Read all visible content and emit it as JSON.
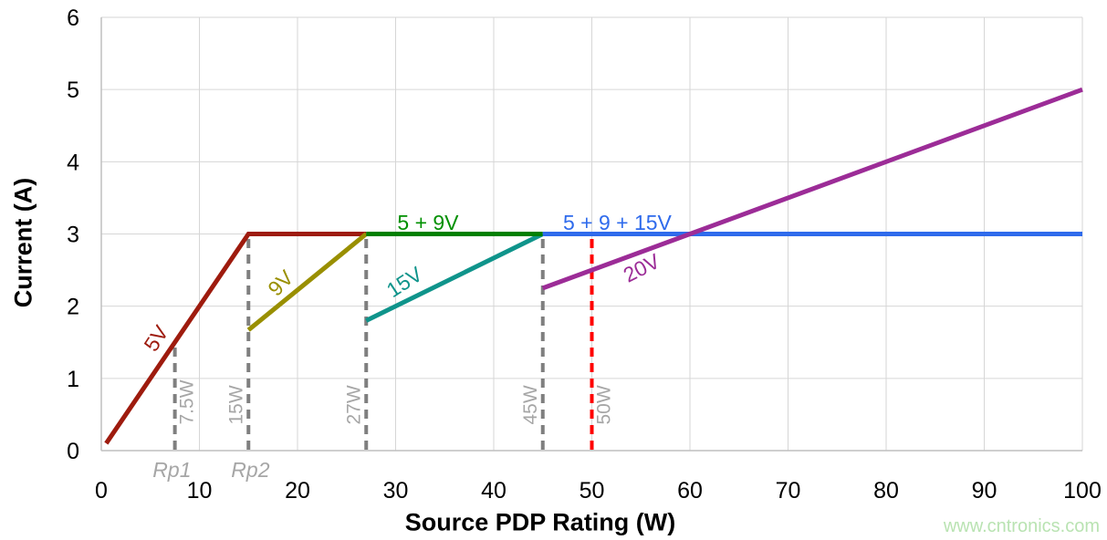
{
  "chart_data": {
    "type": "line",
    "title": "",
    "xlabel": "Source PDP Rating (W)",
    "ylabel": "Current (A)",
    "xlim": [
      0,
      100
    ],
    "ylim": [
      0,
      6
    ],
    "xticks": [
      0,
      10,
      20,
      30,
      40,
      50,
      60,
      70,
      80,
      90,
      100
    ],
    "yticks": [
      0,
      1,
      2,
      3,
      4,
      5,
      6
    ],
    "grid": true,
    "grid_color": "#D6D6D6",
    "axis_color": "#BFBFBF",
    "tick_color": "#000000",
    "ref_label_color": "#A6A6A6",
    "series": [
      {
        "name": "5V",
        "color": "#9E1B0E",
        "points": [
          [
            0.5,
            0.1
          ],
          [
            15,
            3
          ],
          [
            27,
            3
          ]
        ]
      },
      {
        "name": "9V",
        "color": "#998F00",
        "points": [
          [
            15,
            1.67
          ],
          [
            27,
            3
          ]
        ]
      },
      {
        "name": "15V",
        "color": "#0F948B",
        "points": [
          [
            27,
            1.8
          ],
          [
            45,
            3
          ]
        ]
      },
      {
        "name": "5 + 9V",
        "color": "#008000",
        "points": [
          [
            27,
            3
          ],
          [
            45,
            3
          ]
        ]
      },
      {
        "name": "5 + 9 + 15V",
        "color": "#2F6BEC",
        "points": [
          [
            45,
            3
          ],
          [
            100,
            3
          ]
        ]
      },
      {
        "name": "20V",
        "color": "#9C2C97",
        "points": [
          [
            45,
            2.25
          ],
          [
            100,
            5
          ]
        ]
      }
    ],
    "reference_lines": [
      {
        "x": 7.5,
        "y_top": 1.5,
        "color": "#7F7F7F",
        "style": "dashed",
        "label": "7.5W",
        "label_side": "right"
      },
      {
        "x": 15,
        "y_top": 3,
        "color": "#7F7F7F",
        "style": "dashed",
        "label": "15W",
        "label_side": "left"
      },
      {
        "x": 27,
        "y_top": 3,
        "color": "#7F7F7F",
        "style": "dashed",
        "label": "27W",
        "label_side": "left"
      },
      {
        "x": 45,
        "y_top": 3,
        "color": "#7F7F7F",
        "style": "dashed",
        "label": "45W",
        "label_side": "left"
      },
      {
        "x": 50,
        "y_top": 3,
        "color": "#FF0000",
        "style": "dashed",
        "label": "50W",
        "label_side": "right"
      }
    ],
    "series_labels": [
      {
        "text": "5V",
        "x": 6.2,
        "y": 1.5,
        "rotate": -57,
        "color": "#9E1B0E"
      },
      {
        "text": "9V",
        "x": 18.8,
        "y": 2.25,
        "rotate": -46,
        "color": "#998F00"
      },
      {
        "text": "15V",
        "x": 31.3,
        "y": 2.25,
        "rotate": -33,
        "color": "#0F948B"
      },
      {
        "text": "20V",
        "x": 55.4,
        "y": 2.44,
        "rotate": -27,
        "color": "#9C2C97"
      },
      {
        "text": "5 + 9V",
        "x": 33.3,
        "y": 3.06,
        "rotate": 0,
        "color": "#009000"
      },
      {
        "text": "5 + 9 + 15V",
        "x": 52.6,
        "y": 3.06,
        "rotate": 0,
        "color": "#2F6BEC"
      }
    ],
    "axis_annotations": [
      {
        "text": "Rp1",
        "x": 7.2,
        "color": "#A6A6A6"
      },
      {
        "text": "Rp2",
        "x": 15.2,
        "color": "#A6A6A6"
      }
    ]
  },
  "watermark": {
    "text": "www.cntronics.com",
    "color": "#B9E3B2"
  }
}
